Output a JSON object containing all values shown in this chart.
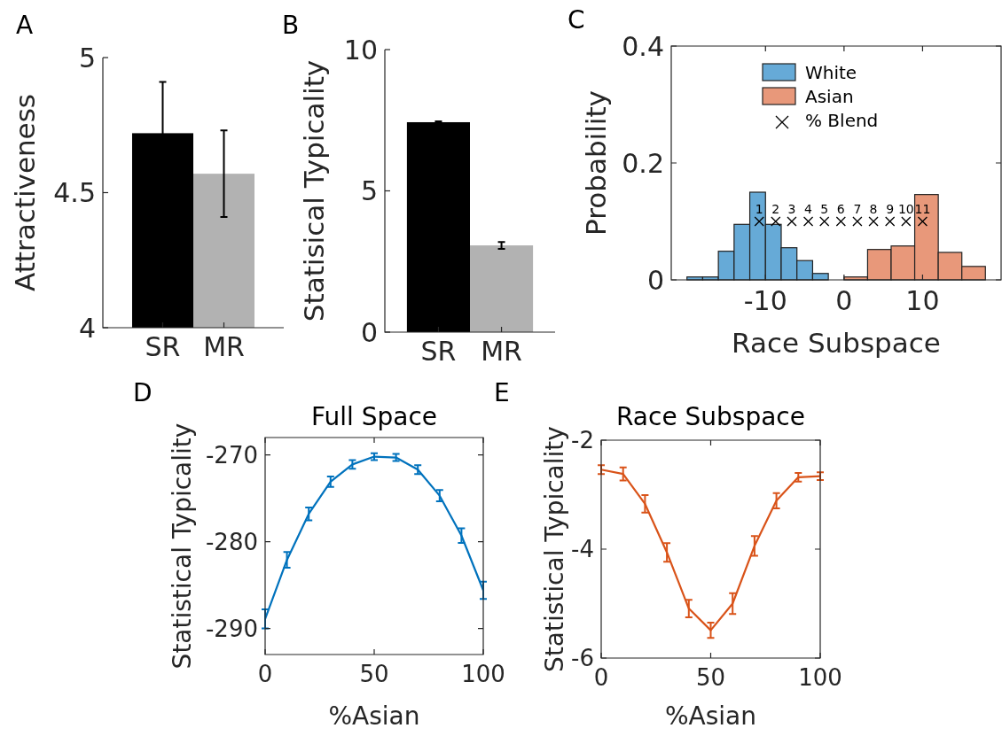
{
  "chart_data": [
    {
      "type": "bar",
      "ylabel": "Attractiveness",
      "categories": [
        "SR",
        "MR"
      ],
      "values": [
        4.72,
        4.57
      ],
      "colors": [
        "#000000",
        "#b2b2b2"
      ],
      "errors": [
        0.19,
        0.16
      ],
      "ylim": [
        4,
        5
      ],
      "yticks": [
        4,
        4.5,
        5
      ],
      "annotations": [
        "A"
      ]
    },
    {
      "type": "bar",
      "ylabel": "Statisical Typicality",
      "categories": [
        "SR",
        "MR"
      ],
      "values": [
        7.43,
        3.07
      ],
      "colors": [
        "#000000",
        "#b2b2b2"
      ],
      "errors": [
        0.03,
        0.12
      ],
      "ylim": [
        0,
        10
      ],
      "yticks": [
        0,
        5,
        10
      ],
      "annotations": [
        "B"
      ]
    },
    {
      "type": "histogram",
      "xlabel": "Race Subspace",
      "ylabel": "Probability",
      "xlim": [
        -22,
        20
      ],
      "xticks": [
        -10,
        0,
        10
      ],
      "ylim": [
        0,
        0.4
      ],
      "yticks": [
        0,
        0.2,
        0.4
      ],
      "legend": "top",
      "series": [
        {
          "name": "White",
          "color": "#66aad7",
          "bins": [
            -20,
            -18,
            -16,
            -14,
            -12,
            -10,
            -8,
            -6,
            -4,
            -2
          ],
          "values": [
            0.005,
            0.005,
            0.049,
            0.095,
            0.15,
            0.095,
            0.055,
            0.033,
            0.011
          ]
        },
        {
          "name": "Asian",
          "color": "#e8987a",
          "bins": [
            0,
            3,
            6,
            9,
            12,
            15,
            18
          ],
          "values": [
            0.005,
            0.052,
            0.058,
            0.146,
            0.047,
            0.023
          ]
        },
        {
          "name": "% Blend",
          "type": "scatter",
          "color": "#000000",
          "marker": "cross",
          "x": [
            -10.8,
            -8.7,
            -6.65,
            -4.55,
            -2.5,
            -0.4,
            1.7,
            3.75,
            5.85,
            7.9,
            10
          ],
          "values": [
            0.1,
            0.1,
            0.1,
            0.1,
            0.1,
            0.1,
            0.1,
            0.1,
            0.1,
            0.1,
            0.1
          ]
        }
      ],
      "annotations": [
        "C",
        {
          "text": "1",
          "x": -10.8,
          "y": 0.1
        },
        {
          "text": "2",
          "x": -8.7,
          "y": 0.1
        },
        {
          "text": "3",
          "x": -6.65,
          "y": 0.1
        },
        {
          "text": "4",
          "x": -4.55,
          "y": 0.1
        },
        {
          "text": "5",
          "x": -2.5,
          "y": 0.1
        },
        {
          "text": "6",
          "x": -0.4,
          "y": 0.1
        },
        {
          "text": "7",
          "x": 1.7,
          "y": 0.1
        },
        {
          "text": "8",
          "x": 3.75,
          "y": 0.1
        },
        {
          "text": "9",
          "x": 5.85,
          "y": 0.1
        },
        {
          "text": "10",
          "x": 7.9,
          "y": 0.1
        },
        {
          "text": "11",
          "x": 10,
          "y": 0.1
        }
      ]
    },
    {
      "type": "line",
      "title": "Full Space",
      "xlabel": "%Asian",
      "ylabel": "Statistical Typicality",
      "xlim": [
        0,
        100
      ],
      "xticks": [
        0,
        50,
        100
      ],
      "ylim": [
        -293,
        -268
      ],
      "yticks": [
        -290,
        -280,
        -270
      ],
      "annotations": [
        "D"
      ],
      "series": [
        {
          "color": "#0072bd",
          "x": [
            0,
            10,
            20,
            30,
            40,
            50,
            60,
            70,
            80,
            90,
            100
          ],
          "values": [
            -288.9,
            -282.1,
            -276.8,
            -273.1,
            -271.1,
            -270.2,
            -270.3,
            -271.7,
            -274.7,
            -279.3,
            -285.6
          ],
          "errors": [
            1.1,
            0.9,
            0.75,
            0.6,
            0.5,
            0.4,
            0.4,
            0.5,
            0.65,
            0.85,
            1.0
          ]
        }
      ]
    },
    {
      "type": "line",
      "title": "Race Subspace",
      "xlabel": "%Asian",
      "ylabel": "Statistical Typicality",
      "xlim": [
        0,
        100
      ],
      "xticks": [
        0,
        50,
        100
      ],
      "ylim": [
        -6,
        -2
      ],
      "yticks": [
        -6,
        -4,
        -2
      ],
      "annotations": [
        "E"
      ],
      "series": [
        {
          "color": "#d95319",
          "x": [
            0,
            10,
            20,
            30,
            40,
            50,
            60,
            70,
            80,
            90,
            100
          ],
          "values": [
            -2.54,
            -2.62,
            -3.17,
            -4.06,
            -5.09,
            -5.49,
            -5.0,
            -3.94,
            -3.11,
            -2.68,
            -2.66
          ],
          "errors": [
            0.08,
            0.12,
            0.16,
            0.17,
            0.16,
            0.14,
            0.19,
            0.18,
            0.14,
            0.08,
            0.07
          ]
        }
      ]
    }
  ]
}
